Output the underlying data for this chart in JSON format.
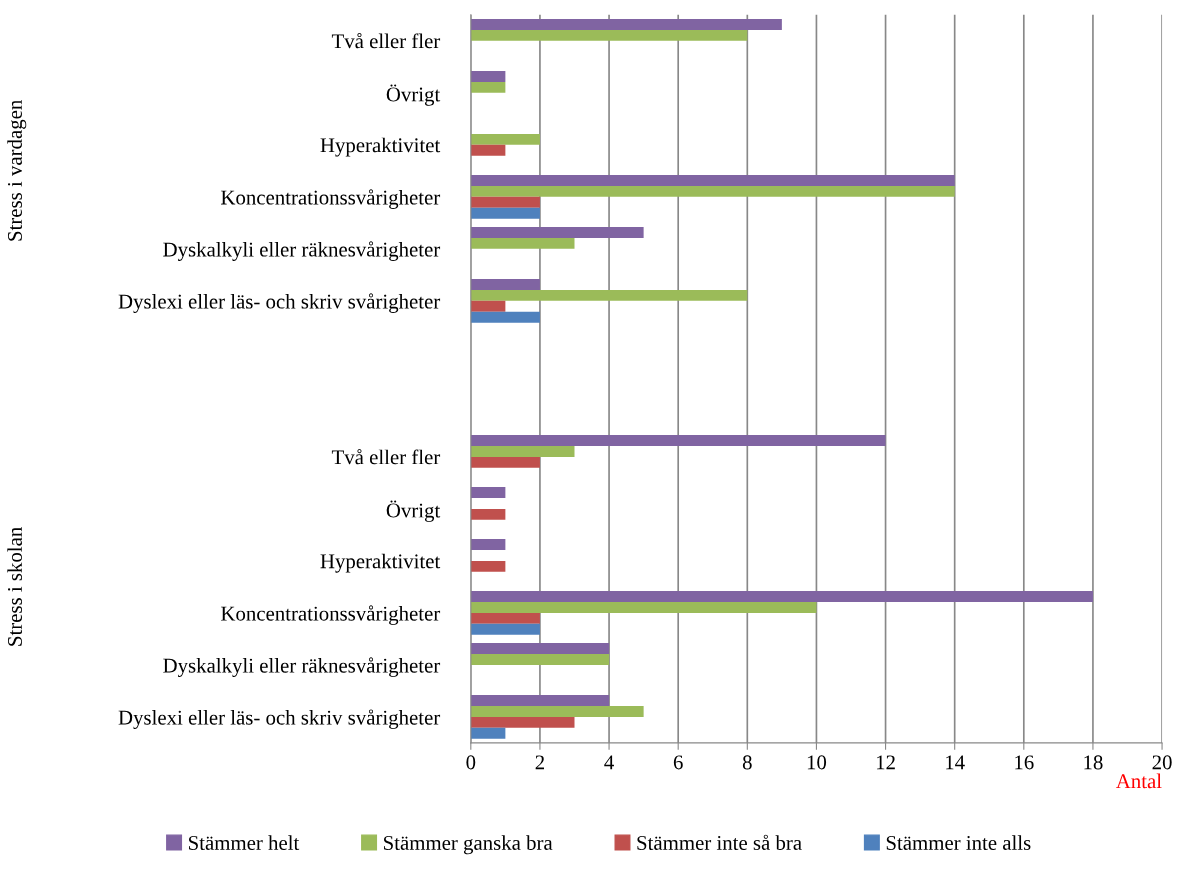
{
  "chart_data": {
    "type": "bar",
    "orientation": "horizontal",
    "xlabel": "Antal",
    "categories": [
      "Två eller fler",
      "Övrigt",
      "Hyperaktivitet",
      "Koncentrationssvårigheter",
      "Dyskalkyli eller räknesvårigheter",
      "Dyslexi eller läs- och skriv svårigheter",
      null,
      null,
      "Två eller fler",
      "Övrigt",
      "Hyperaktivitet",
      "Koncentrationssvårigheter",
      "Dyskalkyli eller räknesvårigheter",
      "Dyslexi eller läs- och skriv svårigheter"
    ],
    "series": [
      {
        "name": "Stämmer helt",
        "color": "#8064a2",
        "values": [
          9,
          1,
          null,
          14,
          5,
          2,
          null,
          null,
          12,
          1,
          1,
          18,
          4,
          4
        ]
      },
      {
        "name": "Stämmer ganska bra",
        "color": "#9bbb59",
        "values": [
          8,
          1,
          2,
          14,
          3,
          8,
          null,
          null,
          3,
          null,
          null,
          10,
          4,
          5
        ]
      },
      {
        "name": "Stämmer inte så bra",
        "color": "#c0504d",
        "values": [
          null,
          null,
          1,
          2,
          null,
          1,
          null,
          null,
          2,
          1,
          1,
          2,
          null,
          3
        ]
      },
      {
        "name": "Stämmer inte alls",
        "color": "#4f81bd",
        "values": [
          null,
          null,
          null,
          2,
          null,
          2,
          null,
          null,
          null,
          null,
          null,
          2,
          null,
          1
        ]
      }
    ],
    "annotations": [
      "Stress i vardagen",
      "Stress i skolan"
    ],
    "xlim": [
      0,
      20
    ],
    "xticks": [
      0,
      2,
      4,
      6,
      8,
      10,
      12,
      14,
      16,
      18,
      20
    ],
    "grid": "x",
    "legend": "bottom"
  }
}
